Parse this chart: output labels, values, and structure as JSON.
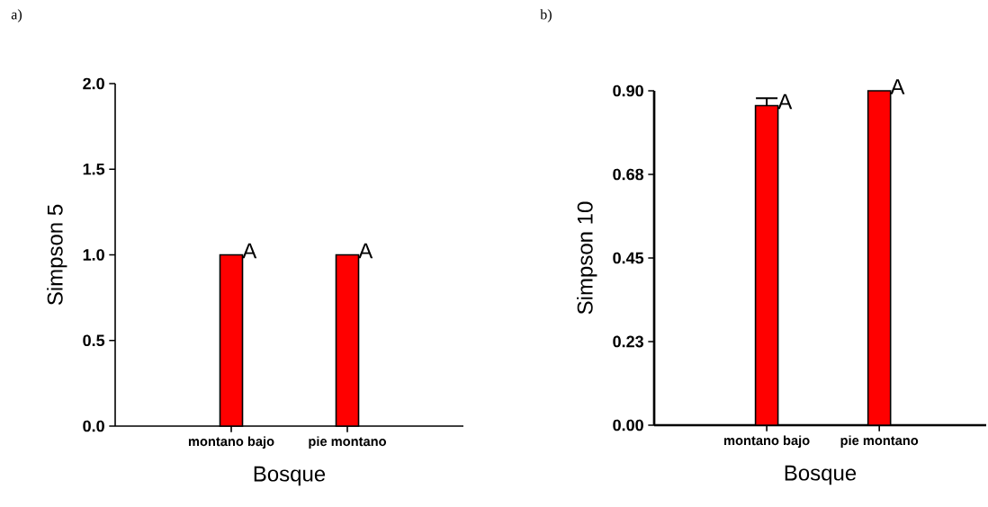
{
  "chart_data": [
    {
      "type": "bar",
      "title": "a)",
      "xlabel": "Bosque",
      "ylabel": "Simpson 5",
      "categories": [
        "montano bajo",
        "pie montano"
      ],
      "values": [
        1.0,
        1.0
      ],
      "color": "#ff0000",
      "ylim": [
        0,
        2.0
      ],
      "yticks": [
        {
          "value": 0,
          "label": "0.0"
        },
        {
          "value": 0.5,
          "label": "0.5"
        },
        {
          "value": 1.0,
          "label": "1.0"
        },
        {
          "value": 1.5,
          "label": "1.5"
        },
        {
          "value": 2.0,
          "label": "2.0"
        }
      ],
      "annotations": [
        {
          "text": "A",
          "x": "montano bajo",
          "y": 1.0
        },
        {
          "text": "A",
          "x": "pie montano",
          "y": 1.0
        }
      ]
    },
    {
      "type": "bar",
      "title": "b)",
      "xlabel": "Bosque",
      "ylabel": "Simpson 10",
      "categories": [
        "montano bajo",
        "pie montano"
      ],
      "values": [
        0.86,
        0.9
      ],
      "errors": [
        0.02,
        null
      ],
      "color": "#ff0000",
      "ylim": [
        0,
        0.9
      ],
      "yticks": [
        {
          "value": 0,
          "label": "0.00"
        },
        {
          "value": 0.225,
          "label": "0.23"
        },
        {
          "value": 0.45,
          "label": "0.45"
        },
        {
          "value": 0.675,
          "label": "0.68"
        },
        {
          "value": 0.9,
          "label": "0.90"
        }
      ],
      "annotations": [
        {
          "text": "A",
          "x": "montano bajo",
          "y": 0.86
        },
        {
          "text": "A",
          "x": "pie montano",
          "y": 0.9
        }
      ]
    }
  ]
}
